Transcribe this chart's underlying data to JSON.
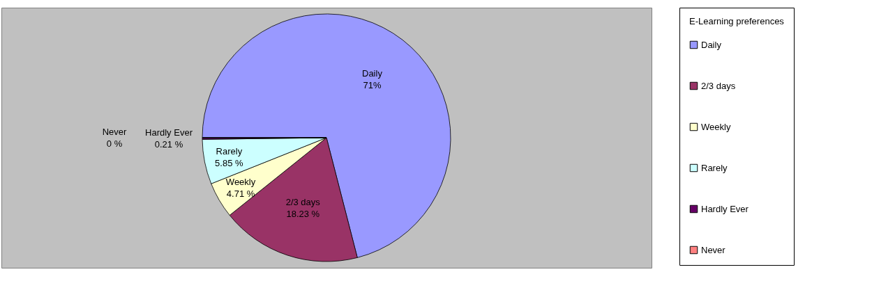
{
  "chart_data": {
    "type": "pie",
    "legend_title": "E-Learning preferences",
    "categories": [
      "Daily",
      "2/3 days",
      "Weekly",
      "Rarely",
      "Hardly Ever",
      "Never"
    ],
    "values": [
      71,
      18.23,
      4.71,
      5.85,
      0.21,
      0
    ],
    "colors": [
      "#9999ff",
      "#993366",
      "#ffffcc",
      "#ccffff",
      "#660066",
      "#ff8080"
    ],
    "value_labels": [
      "71%",
      "18.23 %",
      "4.71 %",
      "5.85 %",
      "0.21 %",
      "0 %"
    ],
    "legend": "right"
  }
}
